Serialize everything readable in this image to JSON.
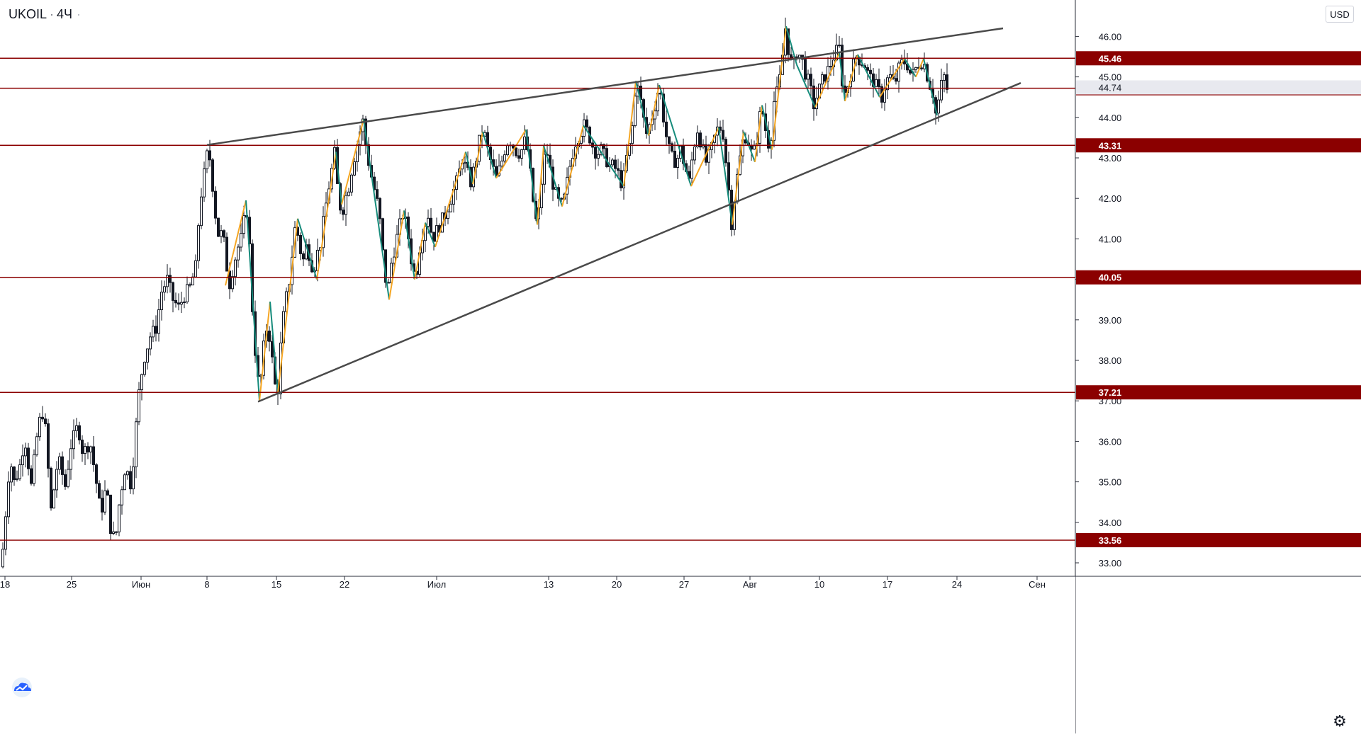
{
  "header": {
    "symbol": "UKOIL",
    "separator": "·",
    "interval": "4Ч",
    "more_icon": "more-dots-icon"
  },
  "currency": "USD",
  "settings_icon": "gear-icon",
  "logo_icon": "tradingview-cloud-logo",
  "colors": {
    "candle": "#131722",
    "zigzag_up": "#f5a623",
    "zigzag_down": "#168b7b",
    "level_line": "#8b0000",
    "level_label_bg": "#8b0000",
    "trendline": "#4a4a4a",
    "last_price_bg": "#e8e9ef"
  },
  "chart_data": {
    "type": "candlestick",
    "symbol": "UKOIL",
    "interval": "4Ч",
    "ylim": [
      32.8,
      46.6
    ],
    "y_ticks": [
      "33.00",
      "34.00",
      "35.00",
      "36.00",
      "37.00",
      "38.00",
      "39.00",
      "40.00",
      "41.00",
      "42.00",
      "43.00",
      "44.00",
      "45.00",
      "46.00"
    ],
    "x_ticks": [
      "18",
      "25",
      "Июн",
      "8",
      "15",
      "22",
      "Июл",
      "13",
      "20",
      "27",
      "Авг",
      "10",
      "17",
      "24",
      "Сен"
    ],
    "horizontal_levels": [
      "45.46",
      "44.72",
      "43.31",
      "40.05",
      "37.21",
      "33.56"
    ],
    "last_price": "44.74",
    "trendlines": [
      {
        "name": "upper",
        "from": [
          "Jun 8",
          43.32
        ],
        "to": [
          "Aug 28",
          46.2
        ]
      },
      {
        "name": "lower",
        "from": [
          "Jun 14",
          36.98
        ],
        "to": [
          "Aug 29",
          44.85
        ]
      }
    ],
    "price_path": [
      [
        0,
        32.9
      ],
      [
        5,
        34.0
      ],
      [
        12,
        35.6
      ],
      [
        18,
        35.0
      ],
      [
        25,
        35.3
      ],
      [
        33,
        36.1
      ],
      [
        42,
        34.9
      ],
      [
        52,
        36.4
      ],
      [
        60,
        36.8
      ],
      [
        70,
        34.3
      ],
      [
        80,
        35.6
      ],
      [
        90,
        34.9
      ],
      [
        98,
        35.9
      ],
      [
        108,
        36.4
      ],
      [
        115,
        35.7
      ],
      [
        125,
        36.0
      ],
      [
        133,
        35.1
      ],
      [
        140,
        34.2
      ],
      [
        148,
        34.9
      ],
      [
        155,
        33.7
      ],
      [
        161,
        33.6
      ],
      [
        167,
        34.6
      ],
      [
        175,
        35.4
      ],
      [
        183,
        34.9
      ],
      [
        190,
        36.4
      ],
      [
        195,
        37.4
      ],
      [
        202,
        38.1
      ],
      [
        210,
        38.6
      ],
      [
        218,
        38.8
      ],
      [
        226,
        39.7
      ],
      [
        234,
        40.0
      ],
      [
        242,
        39.5
      ],
      [
        250,
        39.3
      ],
      [
        258,
        39.6
      ],
      [
        266,
        39.8
      ],
      [
        274,
        40.3
      ],
      [
        280,
        41.9
      ],
      [
        287,
        42.7
      ],
      [
        292,
        43.3
      ],
      [
        297,
        42.5
      ],
      [
        302,
        41.6
      ],
      [
        307,
        41.0
      ],
      [
        312,
        41.2
      ],
      [
        318,
        40.3
      ],
      [
        322,
        39.9
      ],
      [
        328,
        40.4
      ],
      [
        334,
        40.8
      ],
      [
        340,
        41.1
      ],
      [
        345,
        41.9
      ],
      [
        350,
        40.8
      ],
      [
        355,
        38.9
      ],
      [
        360,
        37.8
      ],
      [
        364,
        37.2
      ],
      [
        369,
        38.2
      ],
      [
        375,
        38.9
      ],
      [
        380,
        38.4
      ],
      [
        385,
        37.4
      ],
      [
        390,
        37.3
      ],
      [
        395,
        38.6
      ],
      [
        400,
        39.4
      ],
      [
        405,
        39.8
      ],
      [
        410,
        40.6
      ],
      [
        415,
        41.4
      ],
      [
        420,
        40.9
      ],
      [
        425,
        40.4
      ],
      [
        430,
        40.8
      ],
      [
        435,
        40.6
      ],
      [
        440,
        40.2
      ],
      [
        445,
        40.6
      ],
      [
        450,
        40.9
      ],
      [
        455,
        41.5
      ],
      [
        460,
        42.1
      ],
      [
        465,
        42.6
      ],
      [
        470,
        43.1
      ],
      [
        475,
        42.1
      ],
      [
        480,
        41.6
      ],
      [
        485,
        42.0
      ],
      [
        490,
        42.3
      ],
      [
        495,
        42.8
      ],
      [
        500,
        43.2
      ],
      [
        505,
        43.6
      ],
      [
        510,
        43.9
      ],
      [
        515,
        43.2
      ],
      [
        520,
        42.7
      ],
      [
        525,
        42.3
      ],
      [
        530,
        41.9
      ],
      [
        535,
        41.3
      ],
      [
        540,
        40.2
      ],
      [
        545,
        39.7
      ],
      [
        550,
        40.4
      ],
      [
        555,
        40.8
      ],
      [
        560,
        41.2
      ],
      [
        566,
        41.6
      ],
      [
        572,
        41.3
      ],
      [
        578,
        40.5
      ],
      [
        584,
        40.0
      ],
      [
        590,
        40.8
      ],
      [
        596,
        41.3
      ],
      [
        602,
        41.6
      ],
      [
        608,
        41.0
      ],
      [
        614,
        41.2
      ],
      [
        620,
        41.4
      ],
      [
        626,
        41.6
      ],
      [
        632,
        41.9
      ],
      [
        638,
        42.2
      ],
      [
        644,
        42.5
      ],
      [
        650,
        43.0
      ],
      [
        656,
        42.7
      ],
      [
        662,
        42.4
      ],
      [
        668,
        42.8
      ],
      [
        674,
        43.4
      ],
      [
        680,
        43.7
      ],
      [
        686,
        43.2
      ],
      [
        692,
        42.8
      ],
      [
        698,
        42.5
      ],
      [
        704,
        42.8
      ],
      [
        710,
        43.2
      ],
      [
        716,
        43.5
      ],
      [
        722,
        43.3
      ],
      [
        728,
        43.1
      ],
      [
        734,
        43.2
      ],
      [
        740,
        43.5
      ],
      [
        746,
        42.6
      ],
      [
        752,
        41.6
      ],
      [
        756,
        41.3
      ],
      [
        762,
        42.4
      ],
      [
        768,
        43.3
      ],
      [
        774,
        42.7
      ],
      [
        780,
        42.2
      ],
      [
        786,
        41.9
      ],
      [
        792,
        41.8
      ],
      [
        798,
        42.4
      ],
      [
        804,
        43.0
      ],
      [
        810,
        43.4
      ],
      [
        816,
        43.6
      ],
      [
        822,
        43.8
      ],
      [
        828,
        43.6
      ],
      [
        834,
        43.3
      ],
      [
        840,
        43.1
      ],
      [
        846,
        43.2
      ],
      [
        852,
        43.0
      ],
      [
        858,
        42.8
      ],
      [
        864,
        42.8
      ],
      [
        870,
        42.6
      ],
      [
        876,
        42.3
      ],
      [
        882,
        43.0
      ],
      [
        888,
        43.4
      ],
      [
        894,
        44.5
      ],
      [
        898,
        44.9
      ],
      [
        904,
        44.1
      ],
      [
        910,
        43.6
      ],
      [
        916,
        43.9
      ],
      [
        922,
        44.3
      ],
      [
        928,
        44.8
      ],
      [
        934,
        44.0
      ],
      [
        940,
        43.3
      ],
      [
        946,
        43.0
      ],
      [
        952,
        42.9
      ],
      [
        958,
        43.2
      ],
      [
        964,
        42.8
      ],
      [
        970,
        42.4
      ],
      [
        976,
        43.2
      ],
      [
        982,
        43.7
      ],
      [
        988,
        43.3
      ],
      [
        994,
        42.9
      ],
      [
        1000,
        43.1
      ],
      [
        1006,
        43.5
      ],
      [
        1012,
        43.8
      ],
      [
        1018,
        43.6
      ],
      [
        1024,
        42.6
      ],
      [
        1030,
        41.4
      ],
      [
        1036,
        42.3
      ],
      [
        1042,
        43.0
      ],
      [
        1048,
        43.6
      ],
      [
        1054,
        43.4
      ],
      [
        1060,
        43.0
      ],
      [
        1066,
        43.5
      ],
      [
        1072,
        44.3
      ],
      [
        1078,
        43.7
      ],
      [
        1084,
        43.2
      ],
      [
        1090,
        44.4
      ],
      [
        1096,
        44.7
      ],
      [
        1100,
        45.2
      ],
      [
        1106,
        46.2
      ],
      [
        1110,
        45.7
      ],
      [
        1116,
        45.2
      ],
      [
        1122,
        45.6
      ],
      [
        1128,
        45.5
      ],
      [
        1134,
        45.1
      ],
      [
        1140,
        44.8
      ],
      [
        1146,
        44.3
      ],
      [
        1152,
        44.6
      ],
      [
        1158,
        44.9
      ],
      [
        1164,
        45.1
      ],
      [
        1170,
        45.3
      ],
      [
        1176,
        45.6
      ],
      [
        1182,
        45.7
      ],
      [
        1188,
        44.5
      ],
      [
        1194,
        44.8
      ],
      [
        1200,
        45.2
      ],
      [
        1206,
        45.5
      ],
      [
        1212,
        45.4
      ],
      [
        1218,
        45.3
      ],
      [
        1224,
        45.0
      ],
      [
        1230,
        44.9
      ],
      [
        1236,
        44.7
      ],
      [
        1242,
        44.5
      ],
      [
        1248,
        44.9
      ],
      [
        1254,
        45.0
      ],
      [
        1260,
        44.8
      ],
      [
        1266,
        45.2
      ],
      [
        1272,
        45.4
      ],
      [
        1278,
        45.3
      ],
      [
        1284,
        45.0
      ],
      [
        1290,
        45.2
      ],
      [
        1296,
        45.4
      ],
      [
        1302,
        45.3
      ],
      [
        1308,
        44.9
      ],
      [
        1314,
        44.6
      ],
      [
        1318,
        44.1
      ],
      [
        1322,
        44.4
      ],
      [
        1326,
        44.8
      ],
      [
        1330,
        45.0
      ],
      [
        1334,
        44.7
      ]
    ],
    "zigzag": [
      [
        316,
        39.85
      ],
      [
        345,
        41.95
      ],
      [
        364,
        37.0
      ],
      [
        379,
        39.45
      ],
      [
        390,
        37.2
      ],
      [
        418,
        41.5
      ],
      [
        445,
        40.0
      ],
      [
        472,
        43.15
      ],
      [
        480,
        41.85
      ],
      [
        511,
        43.95
      ],
      [
        547,
        39.5
      ],
      [
        568,
        41.7
      ],
      [
        583,
        40.0
      ],
      [
        598,
        41.4
      ],
      [
        612,
        40.8
      ],
      [
        655,
        43.15
      ],
      [
        665,
        42.35
      ],
      [
        679,
        43.65
      ],
      [
        698,
        42.5
      ],
      [
        740,
        43.7
      ],
      [
        756,
        41.35
      ],
      [
        765,
        43.3
      ],
      [
        791,
        41.8
      ],
      [
        821,
        43.8
      ],
      [
        878,
        42.3
      ],
      [
        895,
        44.9
      ],
      [
        913,
        43.55
      ],
      [
        928,
        44.8
      ],
      [
        973,
        42.3
      ],
      [
        1012,
        43.75
      ],
      [
        1031,
        41.35
      ],
      [
        1047,
        43.65
      ],
      [
        1063,
        42.9
      ],
      [
        1073,
        44.3
      ],
      [
        1087,
        43.2
      ],
      [
        1107,
        46.25
      ],
      [
        1122,
        45.3
      ],
      [
        1148,
        44.25
      ],
      [
        1182,
        45.6
      ],
      [
        1190,
        44.4
      ],
      [
        1208,
        45.55
      ],
      [
        1239,
        44.5
      ],
      [
        1274,
        45.45
      ],
      [
        1290,
        45.0
      ],
      [
        1301,
        45.45
      ],
      [
        1320,
        44.05
      ]
    ]
  }
}
